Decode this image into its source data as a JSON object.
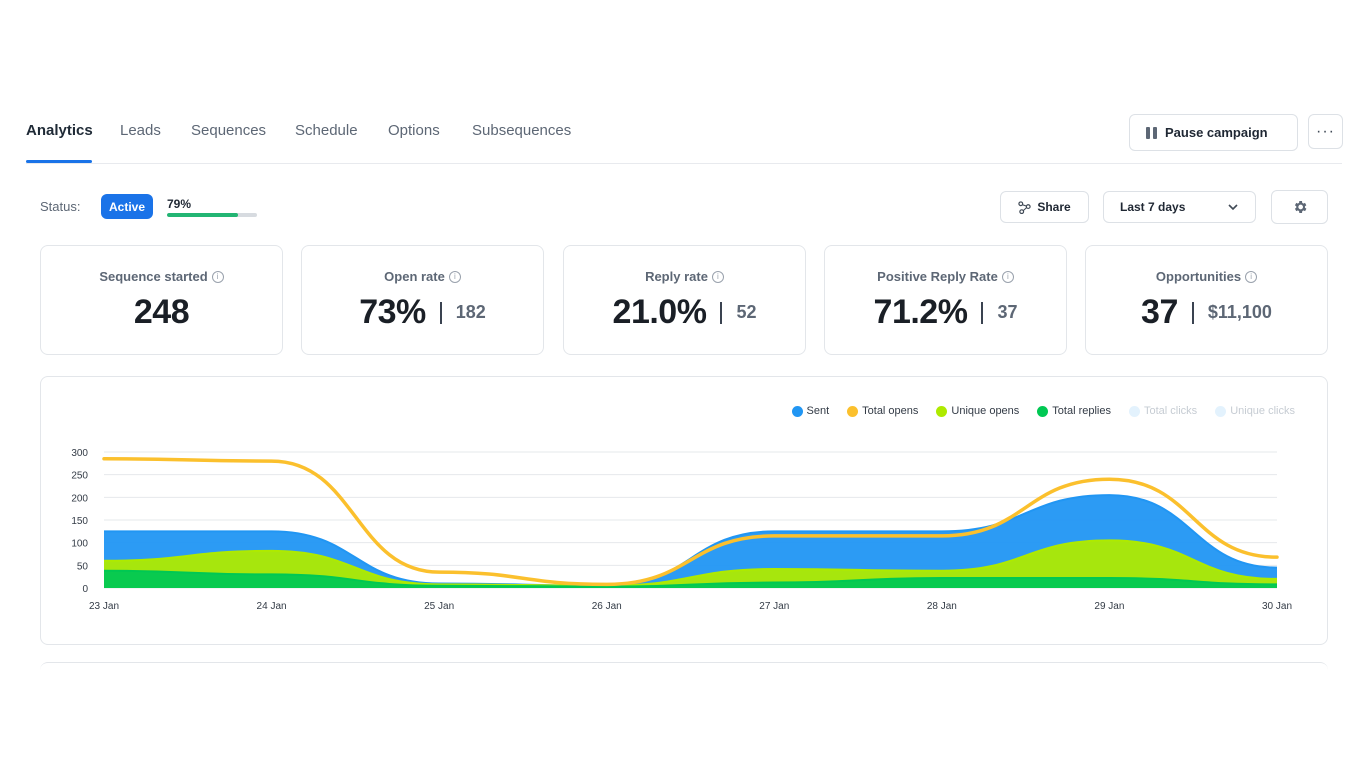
{
  "tabs": [
    {
      "label": "Analytics",
      "active": true
    },
    {
      "label": "Leads"
    },
    {
      "label": "Sequences"
    },
    {
      "label": "Schedule"
    },
    {
      "label": "Options"
    },
    {
      "label": "Subsequences"
    }
  ],
  "actions": {
    "pause_label": "Pause campaign",
    "more_label": "···"
  },
  "status": {
    "label": "Status:",
    "badge": "Active",
    "progress_label": "79%",
    "progress": 0.79
  },
  "toolbar": {
    "share_label": "Share",
    "range_label": "Last 7 days"
  },
  "metrics": [
    {
      "title": "Sequence started",
      "value": "248",
      "secondary": ""
    },
    {
      "title": "Open rate",
      "value": "73%",
      "secondary": "182"
    },
    {
      "title": "Reply rate",
      "value": "21.0%",
      "secondary": "52"
    },
    {
      "title": "Positive Reply Rate",
      "value": "71.2%",
      "secondary": "37"
    },
    {
      "title": "Opportunities",
      "value": "37",
      "secondary": "$11,100"
    }
  ],
  "colors": {
    "sent": "#2196f3",
    "total_opens": "#fbc02d",
    "unique_opens": "#aeea00",
    "total_replies": "#00c853",
    "accent": "#1a73e8"
  },
  "chart_data": {
    "type": "area",
    "x": [
      "23 Jan",
      "24 Jan",
      "25 Jan",
      "26 Jan",
      "27 Jan",
      "28 Jan",
      "29 Jan",
      "30 Jan"
    ],
    "ylim": [
      0,
      300
    ],
    "yticks": [
      0,
      50,
      100,
      150,
      200,
      250,
      300
    ],
    "grid": true,
    "legend_position": "top-right",
    "series": [
      {
        "name": "Sent",
        "values": [
          125,
          125,
          10,
          5,
          125,
          125,
          205,
          45
        ],
        "color": "#2196f3",
        "style": "area",
        "visible": true
      },
      {
        "name": "Total opens",
        "values": [
          285,
          280,
          35,
          8,
          115,
          115,
          240,
          68
        ],
        "color": "#fbc02d",
        "style": "line",
        "visible": true
      },
      {
        "name": "Unique opens",
        "values": [
          60,
          82,
          8,
          5,
          42,
          38,
          105,
          20
        ],
        "color": "#aeea00",
        "style": "area",
        "visible": true
      },
      {
        "name": "Total replies",
        "values": [
          38,
          30,
          5,
          3,
          12,
          22,
          22,
          8
        ],
        "color": "#00c853",
        "style": "area",
        "visible": true
      },
      {
        "name": "Total clicks",
        "values": [
          0,
          0,
          0,
          0,
          0,
          0,
          0,
          0
        ],
        "color": "#e3f2fd",
        "style": "area",
        "visible": false
      },
      {
        "name": "Unique clicks",
        "values": [
          0,
          0,
          0,
          0,
          0,
          0,
          0,
          0
        ],
        "color": "#e3f2fd",
        "style": "area",
        "visible": false
      }
    ]
  }
}
